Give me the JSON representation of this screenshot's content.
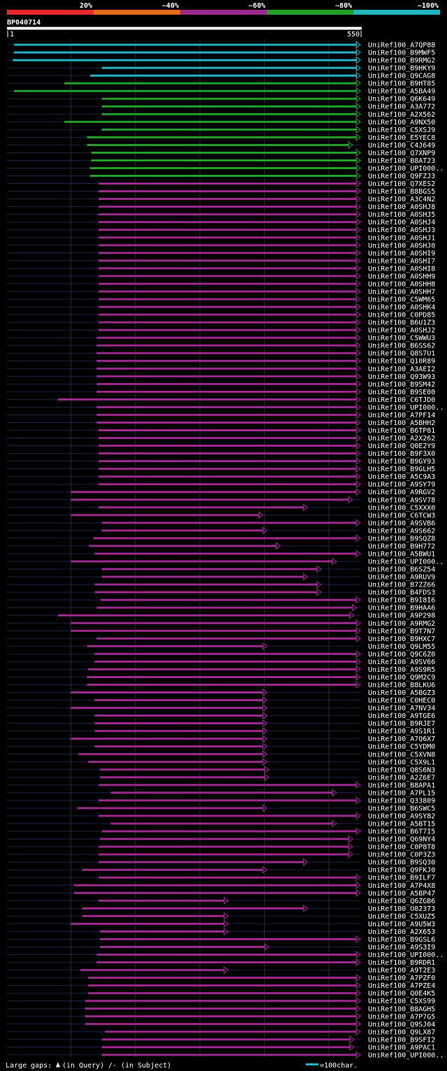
{
  "query": {
    "id": "BP040714",
    "start_label": "1",
    "end_label": "550"
  },
  "legend": {
    "bins": [
      {
        "label": "20%",
        "color": "#e8282d"
      },
      {
        "label": "~40%",
        "color": "#e86a1c"
      },
      {
        "label": "~60%",
        "color": "#9b2a8c"
      },
      {
        "label": "~80%",
        "color": "#23a02a"
      },
      {
        "label": "~100%",
        "color": "#21b5c2"
      }
    ]
  },
  "footer": {
    "gaps_label": "Large gaps:",
    "query_gap": "(in Query)",
    "subject_gap": "/- (in Subject)",
    "scale_label": "=100char."
  },
  "chart_data": {
    "type": "alignment-overview",
    "query_length": 550,
    "rows": [
      {
        "name": "UniRef100_A7QP88",
        "color": "#21b5c2",
        "start": 12,
        "end": 549
      },
      {
        "name": "UniRef100_B9MWF5",
        "color": "#21b5c2",
        "start": 12,
        "end": 549
      },
      {
        "name": "UniRef100_B9RMG2",
        "color": "#21b5c2",
        "start": 10,
        "end": 549
      },
      {
        "name": "UniRef100_B9HKY9",
        "color": "#21b5c2",
        "start": 148,
        "end": 549
      },
      {
        "name": "UniRef100_Q9CAG8",
        "color": "#21b5c2",
        "start": 130,
        "end": 549
      },
      {
        "name": "UniRef100_B9HT85",
        "color": "#23a02a",
        "start": 90,
        "end": 549
      },
      {
        "name": "UniRef100_A5BA49",
        "color": "#23a02a",
        "start": 12,
        "end": 549
      },
      {
        "name": "UniRef100_Q6K649",
        "color": "#23a02a",
        "start": 148,
        "end": 549
      },
      {
        "name": "UniRef100_A3A772",
        "color": "#23a02a",
        "start": 148,
        "end": 549
      },
      {
        "name": "UniRef100_A2X562",
        "color": "#23a02a",
        "start": 148,
        "end": 549
      },
      {
        "name": "UniRef100_A9NX50",
        "color": "#23a02a",
        "start": 90,
        "end": 549
      },
      {
        "name": "UniRef100_C5XSJ9",
        "color": "#23a02a",
        "start": 148,
        "end": 549
      },
      {
        "name": "UniRef100_E5YEC8",
        "color": "#23a02a",
        "start": 125,
        "end": 549
      },
      {
        "name": "UniRef100_C4J649",
        "color": "#23a02a",
        "start": 125,
        "end": 537
      },
      {
        "name": "UniRef100_Q7XNP9",
        "color": "#23a02a",
        "start": 132,
        "end": 549
      },
      {
        "name": "UniRef100_B8AT23",
        "color": "#23a02a",
        "start": 132,
        "end": 549
      },
      {
        "name": "UniRef100_UPI000..",
        "color": "#23a02a",
        "start": 130,
        "end": 549
      },
      {
        "name": "UniRef100_Q9FZJ3",
        "color": "#23a02a",
        "start": 130,
        "end": 549
      },
      {
        "name": "UniRef100_Q7XES2",
        "color": "#9b2a8c",
        "start": 143,
        "end": 549
      },
      {
        "name": "UniRef100_B8BGS5",
        "color": "#9b2a8c",
        "start": 143,
        "end": 549
      },
      {
        "name": "UniRef100_A3C4N2",
        "color": "#9b2a8c",
        "start": 143,
        "end": 549
      },
      {
        "name": "UniRef100_A0SHJ8",
        "color": "#9b2a8c",
        "start": 143,
        "end": 549
      },
      {
        "name": "UniRef100_A0SHJ5",
        "color": "#9b2a8c",
        "start": 143,
        "end": 549
      },
      {
        "name": "UniRef100_A0SHJ4",
        "color": "#9b2a8c",
        "start": 143,
        "end": 549
      },
      {
        "name": "UniRef100_A0SHJ3",
        "color": "#9b2a8c",
        "start": 143,
        "end": 549
      },
      {
        "name": "UniRef100_A0SHJ1",
        "color": "#9b2a8c",
        "start": 143,
        "end": 549
      },
      {
        "name": "UniRef100_A0SHJ0",
        "color": "#9b2a8c",
        "start": 143,
        "end": 549
      },
      {
        "name": "UniRef100_A0SHI9",
        "color": "#9b2a8c",
        "start": 143,
        "end": 549
      },
      {
        "name": "UniRef100_A0SHI7",
        "color": "#9b2a8c",
        "start": 143,
        "end": 549
      },
      {
        "name": "UniRef100_A0SHI8",
        "color": "#9b2a8c",
        "start": 143,
        "end": 549
      },
      {
        "name": "UniRef100_A0SHH9",
        "color": "#9b2a8c",
        "start": 143,
        "end": 549
      },
      {
        "name": "UniRef100_A0SHH8",
        "color": "#9b2a8c",
        "start": 143,
        "end": 549
      },
      {
        "name": "UniRef100_A0SHH7",
        "color": "#9b2a8c",
        "start": 143,
        "end": 549
      },
      {
        "name": "UniRef100_C5WM65",
        "color": "#9b2a8c",
        "start": 143,
        "end": 549
      },
      {
        "name": "UniRef100_A0SHK4",
        "color": "#9b2a8c",
        "start": 143,
        "end": 549
      },
      {
        "name": "UniRef100_C0PD85",
        "color": "#9b2a8c",
        "start": 143,
        "end": 549
      },
      {
        "name": "UniRef100_B6U1Z3",
        "color": "#9b2a8c",
        "start": 143,
        "end": 549
      },
      {
        "name": "UniRef100_A0SHJ2",
        "color": "#9b2a8c",
        "start": 143,
        "end": 549
      },
      {
        "name": "UniRef100_C5WWU3",
        "color": "#9b2a8c",
        "start": 140,
        "end": 549
      },
      {
        "name": "UniRef100_B6SS62",
        "color": "#9b2a8c",
        "start": 140,
        "end": 549
      },
      {
        "name": "UniRef100_Q8S7U1",
        "color": "#9b2a8c",
        "start": 140,
        "end": 549
      },
      {
        "name": "UniRef100_Q10R89",
        "color": "#9b2a8c",
        "start": 140,
        "end": 549
      },
      {
        "name": "UniRef100_A3AEI2",
        "color": "#9b2a8c",
        "start": 140,
        "end": 549
      },
      {
        "name": "UniRef100_Q93W93",
        "color": "#9b2a8c",
        "start": 140,
        "end": 549
      },
      {
        "name": "UniRef100_B9SM42",
        "color": "#9b2a8c",
        "start": 140,
        "end": 549
      },
      {
        "name": "UniRef100_B9SE00",
        "color": "#9b2a8c",
        "start": 140,
        "end": 549
      },
      {
        "name": "UniRef100_C6TJD0",
        "color": "#9b2a8c",
        "start": 80,
        "end": 549
      },
      {
        "name": "UniRef100_UPI000..",
        "color": "#9b2a8c",
        "start": 140,
        "end": 549
      },
      {
        "name": "UniRef100_A7PF14",
        "color": "#9b2a8c",
        "start": 140,
        "end": 549
      },
      {
        "name": "UniRef100_A5BHH2",
        "color": "#9b2a8c",
        "start": 140,
        "end": 549
      },
      {
        "name": "UniRef100_B6TP81",
        "color": "#9b2a8c",
        "start": 143,
        "end": 549
      },
      {
        "name": "UniRef100_A2X262",
        "color": "#9b2a8c",
        "start": 143,
        "end": 549
      },
      {
        "name": "UniRef100_Q0E2Y9",
        "color": "#9b2a8c",
        "start": 143,
        "end": 549
      },
      {
        "name": "UniRef100_B9F3X0",
        "color": "#9b2a8c",
        "start": 143,
        "end": 549
      },
      {
        "name": "UniRef100_B9GY93",
        "color": "#9b2a8c",
        "start": 143,
        "end": 549
      },
      {
        "name": "UniRef100_B9GLH5",
        "color": "#9b2a8c",
        "start": 143,
        "end": 549
      },
      {
        "name": "UniRef100_A5C9A3",
        "color": "#9b2a8c",
        "start": 143,
        "end": 549
      },
      {
        "name": "UniRef100_A9SY79",
        "color": "#9b2a8c",
        "start": 143,
        "end": 549
      },
      {
        "name": "UniRef100_A9RGV2",
        "color": "#9b2a8c",
        "start": 100,
        "end": 549
      },
      {
        "name": "UniRef100_A9SV78",
        "color": "#9b2a8c",
        "start": 100,
        "end": 537
      },
      {
        "name": "UniRef100_C5XXX0",
        "color": "#9b2a8c",
        "start": 143,
        "end": 467
      },
      {
        "name": "UniRef100_C6TCW3",
        "color": "#9b2a8c",
        "start": 100,
        "end": 398
      },
      {
        "name": "UniRef100_A9SVB6",
        "color": "#9b2a8c",
        "start": 148,
        "end": 549
      },
      {
        "name": "UniRef100_A9S662",
        "color": "#9b2a8c",
        "start": 148,
        "end": 404
      },
      {
        "name": "UniRef100_B9SQZ8",
        "color": "#9b2a8c",
        "start": 135,
        "end": 549
      },
      {
        "name": "UniRef100_B9H772",
        "color": "#9b2a8c",
        "start": 128,
        "end": 425
      },
      {
        "name": "UniRef100_A5BWU1",
        "color": "#9b2a8c",
        "start": 137,
        "end": 549
      },
      {
        "name": "UniRef100_UPI000..",
        "color": "#9b2a8c",
        "start": 100,
        "end": 512
      },
      {
        "name": "UniRef100_B6SZ54",
        "color": "#9b2a8c",
        "start": 148,
        "end": 488
      },
      {
        "name": "UniRef100_A9RUV9",
        "color": "#9b2a8c",
        "start": 148,
        "end": 467
      },
      {
        "name": "UniRef100_B7ZZ66",
        "color": "#9b2a8c",
        "start": 137,
        "end": 488
      },
      {
        "name": "UniRef100_B4FDS3",
        "color": "#9b2a8c",
        "start": 137,
        "end": 488
      },
      {
        "name": "UniRef100_B9I8I6",
        "color": "#9b2a8c",
        "start": 146,
        "end": 549
      },
      {
        "name": "UniRef100_B9HAA6",
        "color": "#9b2a8c",
        "start": 140,
        "end": 543
      },
      {
        "name": "UniRef100_A9P298",
        "color": "#9b2a8c",
        "start": 80,
        "end": 539
      },
      {
        "name": "UniRef100_A9RMG2",
        "color": "#9b2a8c",
        "start": 100,
        "end": 549
      },
      {
        "name": "UniRef100_B9T7N7",
        "color": "#9b2a8c",
        "start": 100,
        "end": 549
      },
      {
        "name": "UniRef100_B9HXC7",
        "color": "#9b2a8c",
        "start": 140,
        "end": 549
      },
      {
        "name": "UniRef100_Q9LM55",
        "color": "#9b2a8c",
        "start": 125,
        "end": 404
      },
      {
        "name": "UniRef100_Q9C6Z0",
        "color": "#9b2a8c",
        "start": 137,
        "end": 549
      },
      {
        "name": "UniRef100_A9SV66",
        "color": "#9b2a8c",
        "start": 137,
        "end": 549
      },
      {
        "name": "UniRef100_A9S9R5",
        "color": "#9b2a8c",
        "start": 127,
        "end": 549
      },
      {
        "name": "UniRef100_Q9M2C9",
        "color": "#9b2a8c",
        "start": 125,
        "end": 549
      },
      {
        "name": "UniRef100_B8LKU6",
        "color": "#9b2a8c",
        "start": 125,
        "end": 549
      },
      {
        "name": "UniRef100_A5BGZ3",
        "color": "#9b2a8c",
        "start": 100,
        "end": 404
      },
      {
        "name": "UniRef100_C0HEC0",
        "color": "#9b2a8c",
        "start": 137,
        "end": 404
      },
      {
        "name": "UniRef100_A7NV34",
        "color": "#9b2a8c",
        "start": 100,
        "end": 404
      },
      {
        "name": "UniRef100_A9TGE6",
        "color": "#9b2a8c",
        "start": 137,
        "end": 404
      },
      {
        "name": "UniRef100_B9RJE7",
        "color": "#9b2a8c",
        "start": 137,
        "end": 404
      },
      {
        "name": "UniRef100_A9S1R1",
        "color": "#9b2a8c",
        "start": 137,
        "end": 404
      },
      {
        "name": "UniRef100_A7Q6X7",
        "color": "#9b2a8c",
        "start": 100,
        "end": 404
      },
      {
        "name": "UniRef100_C5YDM0",
        "color": "#9b2a8c",
        "start": 137,
        "end": 404
      },
      {
        "name": "UniRef100_C5XVN8",
        "color": "#9b2a8c",
        "start": 112,
        "end": 404
      },
      {
        "name": "UniRef100_C5X9L1",
        "color": "#9b2a8c",
        "start": 127,
        "end": 404
      },
      {
        "name": "UniRef100_Q8S6N3",
        "color": "#9b2a8c",
        "start": 145,
        "end": 407
      },
      {
        "name": "UniRef100_A2Z6E7",
        "color": "#9b2a8c",
        "start": 145,
        "end": 407
      },
      {
        "name": "UniRef100_B8APA1",
        "color": "#9b2a8c",
        "start": 143,
        "end": 549
      },
      {
        "name": "UniRef100_A7PL15",
        "color": "#9b2a8c",
        "start": 162,
        "end": 512
      },
      {
        "name": "UniRef100_Q33809",
        "color": "#9b2a8c",
        "start": 143,
        "end": 549
      },
      {
        "name": "UniRef100_B6SWC5",
        "color": "#9b2a8c",
        "start": 110,
        "end": 404
      },
      {
        "name": "UniRef100_A9SY82",
        "color": "#9b2a8c",
        "start": 143,
        "end": 549
      },
      {
        "name": "UniRef100_A5BT15",
        "color": "#9b2a8c",
        "start": 162,
        "end": 512
      },
      {
        "name": "UniRef100_B6T7I5",
        "color": "#9b2a8c",
        "start": 148,
        "end": 549
      },
      {
        "name": "UniRef100_Q69NY4",
        "color": "#9b2a8c",
        "start": 145,
        "end": 537
      },
      {
        "name": "UniRef100_C0P8T8",
        "color": "#9b2a8c",
        "start": 143,
        "end": 537
      },
      {
        "name": "UniRef100_C0P3Z3",
        "color": "#9b2a8c",
        "start": 143,
        "end": 537
      },
      {
        "name": "UniRef100_B9SQ30",
        "color": "#9b2a8c",
        "start": 143,
        "end": 467
      },
      {
        "name": "UniRef100_Q9FKJ0",
        "color": "#9b2a8c",
        "start": 118,
        "end": 404
      },
      {
        "name": "UniRef100_B9ILF7",
        "color": "#9b2a8c",
        "start": 143,
        "end": 549
      },
      {
        "name": "UniRef100_A7P4X8",
        "color": "#9b2a8c",
        "start": 105,
        "end": 549
      },
      {
        "name": "UniRef100_A5BP47",
        "color": "#9b2a8c",
        "start": 105,
        "end": 549
      },
      {
        "name": "UniRef100_Q6ZGB6",
        "color": "#9b2a8c",
        "start": 143,
        "end": 344
      },
      {
        "name": "UniRef100_O82373",
        "color": "#9b2a8c",
        "start": 118,
        "end": 467
      },
      {
        "name": "UniRef100_C5XUZ5",
        "color": "#9b2a8c",
        "start": 118,
        "end": 344
      },
      {
        "name": "UniRef100_A9U5W3",
        "color": "#9b2a8c",
        "start": 100,
        "end": 344
      },
      {
        "name": "UniRef100_A2X653",
        "color": "#9b2a8c",
        "start": 145,
        "end": 344
      },
      {
        "name": "UniRef100_B9GSL6",
        "color": "#9b2a8c",
        "start": 145,
        "end": 549
      },
      {
        "name": "UniRef100_A9S3I9",
        "color": "#9b2a8c",
        "start": 145,
        "end": 407
      },
      {
        "name": "UniRef100_UPI000..",
        "color": "#9b2a8c",
        "start": 140,
        "end": 549
      },
      {
        "name": "UniRef100_B9RDR1",
        "color": "#9b2a8c",
        "start": 140,
        "end": 549
      },
      {
        "name": "UniRef100_A9T2E3",
        "color": "#9b2a8c",
        "start": 115,
        "end": 344
      },
      {
        "name": "UniRef100_A7PZF0",
        "color": "#9b2a8c",
        "start": 127,
        "end": 549
      },
      {
        "name": "UniRef100_A7PZE4",
        "color": "#9b2a8c",
        "start": 127,
        "end": 549
      },
      {
        "name": "UniRef100_Q0E4K5",
        "color": "#9b2a8c",
        "start": 127,
        "end": 549
      },
      {
        "name": "UniRef100_C5XS99",
        "color": "#9b2a8c",
        "start": 122,
        "end": 549
      },
      {
        "name": "UniRef100_B8AGH5",
        "color": "#9b2a8c",
        "start": 122,
        "end": 549
      },
      {
        "name": "UniRef100_A7P7G5",
        "color": "#9b2a8c",
        "start": 122,
        "end": 549
      },
      {
        "name": "UniRef100_Q9SJ04",
        "color": "#9b2a8c",
        "start": 122,
        "end": 549
      },
      {
        "name": "UniRef100_Q9LX87",
        "color": "#9b2a8c",
        "start": 153,
        "end": 549
      },
      {
        "name": "UniRef100_B9SFI2",
        "color": "#9b2a8c",
        "start": 148,
        "end": 539
      },
      {
        "name": "UniRef100_A9PAC1",
        "color": "#9b2a8c",
        "start": 148,
        "end": 539
      },
      {
        "name": "UniRef100_UPI000..",
        "color": "#9b2a8c",
        "start": 148,
        "end": 549
      }
    ]
  }
}
